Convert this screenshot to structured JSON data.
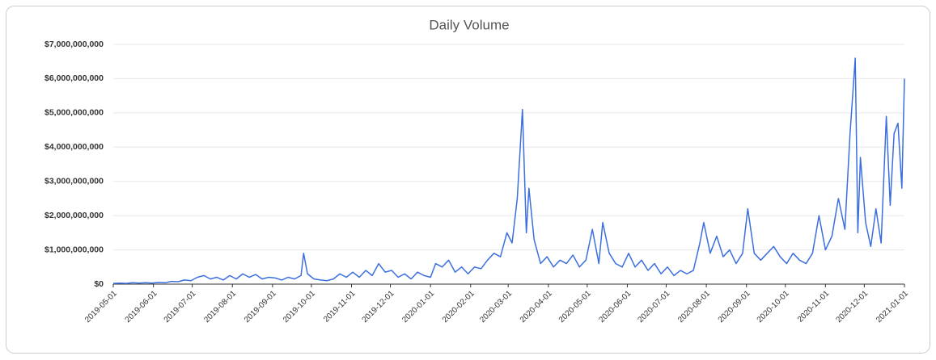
{
  "chart_data": {
    "type": "line",
    "title": "Daily Volume",
    "x": [
      "2019-05-01",
      "2019-05-06",
      "2019-05-11",
      "2019-05-16",
      "2019-05-21",
      "2019-05-26",
      "2019-05-31",
      "2019-06-05",
      "2019-06-10",
      "2019-06-15",
      "2019-06-20",
      "2019-06-25",
      "2019-06-30",
      "2019-07-05",
      "2019-07-10",
      "2019-07-15",
      "2019-07-20",
      "2019-07-25",
      "2019-07-30",
      "2019-08-04",
      "2019-08-09",
      "2019-08-14",
      "2019-08-19",
      "2019-08-24",
      "2019-08-29",
      "2019-09-03",
      "2019-09-08",
      "2019-09-13",
      "2019-09-18",
      "2019-09-23",
      "2019-09-25",
      "2019-09-28",
      "2019-10-03",
      "2019-10-08",
      "2019-10-13",
      "2019-10-18",
      "2019-10-23",
      "2019-10-28",
      "2019-11-02",
      "2019-11-07",
      "2019-11-12",
      "2019-11-17",
      "2019-11-22",
      "2019-11-27",
      "2019-12-02",
      "2019-12-07",
      "2019-12-12",
      "2019-12-17",
      "2019-12-22",
      "2019-12-27",
      "2020-01-01",
      "2020-01-05",
      "2020-01-10",
      "2020-01-15",
      "2020-01-20",
      "2020-01-25",
      "2020-01-30",
      "2020-02-04",
      "2020-02-09",
      "2020-02-14",
      "2020-02-19",
      "2020-02-24",
      "2020-02-29",
      "2020-03-04",
      "2020-03-08",
      "2020-03-12",
      "2020-03-15",
      "2020-03-17",
      "2020-03-21",
      "2020-03-26",
      "2020-03-31",
      "2020-04-05",
      "2020-04-10",
      "2020-04-15",
      "2020-04-20",
      "2020-04-25",
      "2020-04-30",
      "2020-05-05",
      "2020-05-10",
      "2020-05-13",
      "2020-05-18",
      "2020-05-23",
      "2020-05-28",
      "2020-06-02",
      "2020-06-07",
      "2020-06-12",
      "2020-06-17",
      "2020-06-22",
      "2020-06-27",
      "2020-07-02",
      "2020-07-07",
      "2020-07-12",
      "2020-07-17",
      "2020-07-22",
      "2020-07-27",
      "2020-07-30",
      "2020-08-04",
      "2020-08-09",
      "2020-08-14",
      "2020-08-19",
      "2020-08-24",
      "2020-08-29",
      "2020-09-02",
      "2020-09-07",
      "2020-09-12",
      "2020-09-17",
      "2020-09-22",
      "2020-09-27",
      "2020-10-02",
      "2020-10-07",
      "2020-10-12",
      "2020-10-17",
      "2020-10-22",
      "2020-10-27",
      "2020-11-01",
      "2020-11-06",
      "2020-11-11",
      "2020-11-16",
      "2020-11-20",
      "2020-11-24",
      "2020-11-26",
      "2020-11-28",
      "2020-12-02",
      "2020-12-06",
      "2020-12-10",
      "2020-12-14",
      "2020-12-18",
      "2020-12-21",
      "2020-12-24",
      "2020-12-27",
      "2020-12-30",
      "2021-01-01"
    ],
    "series": [
      {
        "name": "Daily Volume",
        "color": "#3b6fe0",
        "values": [
          20000000,
          30000000,
          20000000,
          40000000,
          30000000,
          40000000,
          30000000,
          50000000,
          40000000,
          80000000,
          70000000,
          120000000,
          100000000,
          200000000,
          250000000,
          150000000,
          200000000,
          120000000,
          250000000,
          150000000,
          300000000,
          200000000,
          280000000,
          150000000,
          200000000,
          180000000,
          120000000,
          200000000,
          150000000,
          250000000,
          900000000,
          300000000,
          150000000,
          120000000,
          100000000,
          150000000,
          300000000,
          200000000,
          350000000,
          200000000,
          400000000,
          250000000,
          600000000,
          350000000,
          400000000,
          200000000,
          300000000,
          150000000,
          350000000,
          250000000,
          200000000,
          600000000,
          500000000,
          700000000,
          350000000,
          500000000,
          300000000,
          500000000,
          450000000,
          700000000,
          900000000,
          800000000,
          1500000000,
          1200000000,
          2500000000,
          5100000000,
          1500000000,
          2800000000,
          1300000000,
          600000000,
          800000000,
          500000000,
          700000000,
          600000000,
          850000000,
          500000000,
          700000000,
          1600000000,
          600000000,
          1800000000,
          900000000,
          600000000,
          500000000,
          900000000,
          500000000,
          700000000,
          400000000,
          600000000,
          300000000,
          500000000,
          250000000,
          400000000,
          300000000,
          400000000,
          1200000000,
          1800000000,
          900000000,
          1400000000,
          800000000,
          1000000000,
          600000000,
          900000000,
          2200000000,
          900000000,
          700000000,
          900000000,
          1100000000,
          800000000,
          600000000,
          900000000,
          700000000,
          600000000,
          900000000,
          2000000000,
          1000000000,
          1400000000,
          2500000000,
          1600000000,
          4400000000,
          6600000000,
          1500000000,
          3700000000,
          1800000000,
          1100000000,
          2200000000,
          1200000000,
          4900000000,
          2300000000,
          4400000000,
          4700000000,
          2800000000,
          6000000000
        ]
      }
    ],
    "xlim": [
      "2019-05-01",
      "2021-01-01"
    ],
    "xticks": [
      "2019-05-01",
      "2019-06-01",
      "2019-07-01",
      "2019-08-01",
      "2019-09-01",
      "2019-10-01",
      "2019-11-01",
      "2019-12-01",
      "2020-01-01",
      "2020-02-01",
      "2020-03-01",
      "2020-04-01",
      "2020-05-01",
      "2020-06-01",
      "2020-07-01",
      "2020-08-01",
      "2020-09-01",
      "2020-10-01",
      "2020-11-01",
      "2020-12-01",
      "2021-01-01"
    ],
    "ylim": [
      0,
      7000000000
    ],
    "yticks": [
      {
        "value": 0,
        "label": "$0"
      },
      {
        "value": 1000000000,
        "label": "$1,000,000,000"
      },
      {
        "value": 2000000000,
        "label": "$2,000,000,000"
      },
      {
        "value": 3000000000,
        "label": "$3,000,000,000"
      },
      {
        "value": 4000000000,
        "label": "$4,000,000,000"
      },
      {
        "value": 5000000000,
        "label": "$5,000,000,000"
      },
      {
        "value": 6000000000,
        "label": "$6,000,000,000"
      },
      {
        "value": 7000000000,
        "label": "$7,000,000,000"
      }
    ],
    "grid": true
  }
}
